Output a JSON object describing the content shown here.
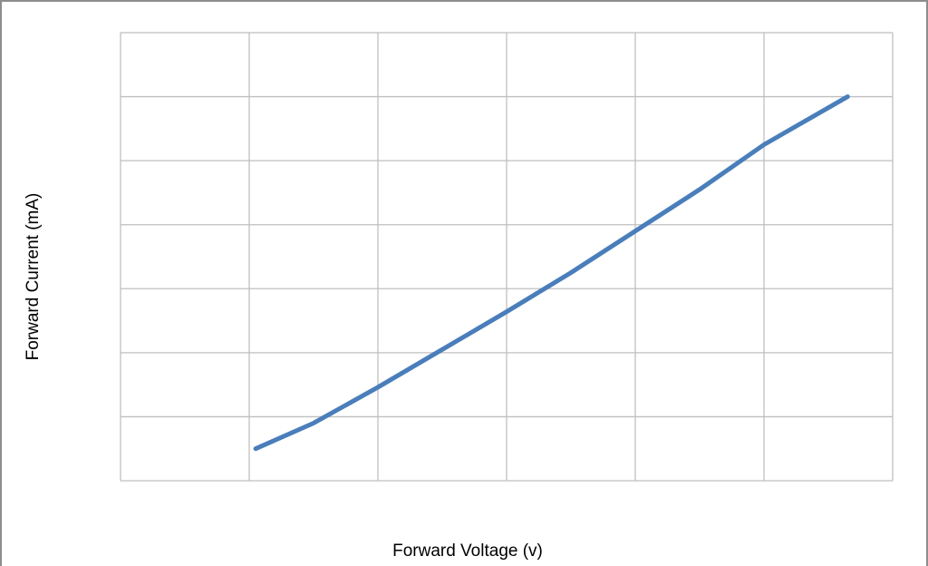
{
  "chart_data": {
    "type": "line",
    "x_label": "Forward Voltage (v)",
    "y_label": "Forward Current  (mA)",
    "x": [
      1.05,
      1.5,
      2,
      2.5,
      3,
      3.5,
      4,
      4.5,
      5,
      5.65
    ],
    "series": [
      {
        "color": "#4a7ebb",
        "values": [
          0.5,
          0.9,
          1.46,
          2.05,
          2.64,
          3.25,
          3.9,
          4.55,
          5.25,
          6.0
        ]
      }
    ],
    "xlim": [
      0,
      6
    ],
    "ylim": [
      0,
      7
    ],
    "xticks": [
      0,
      1,
      2,
      3,
      4,
      5,
      6
    ],
    "yticks": [
      0,
      1,
      2,
      3,
      4,
      5,
      6,
      7
    ],
    "grid": true
  }
}
